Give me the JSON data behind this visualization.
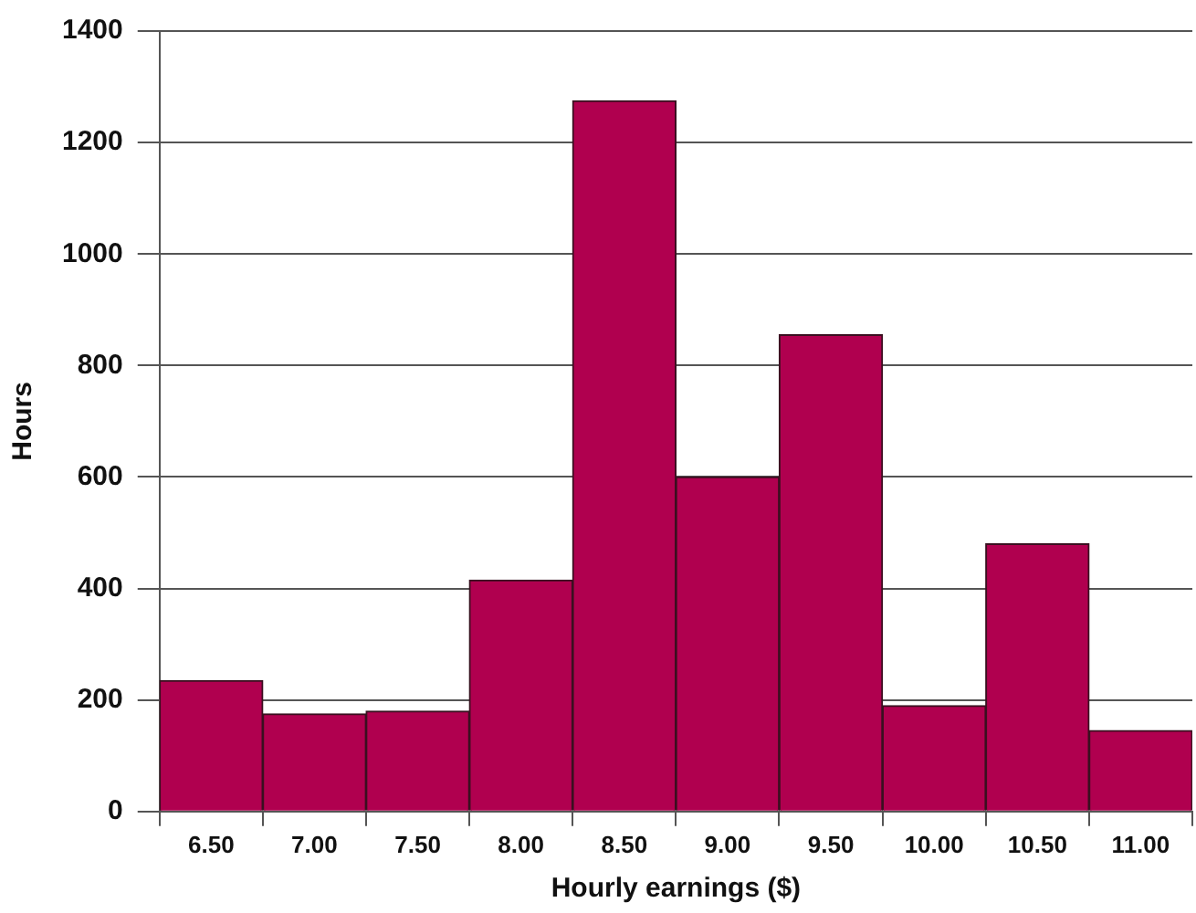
{
  "chart_data": {
    "type": "histogram",
    "xlabel": "Hourly earnings ($)",
    "ylabel": "Hours",
    "bins": [
      6.25,
      6.75,
      7.25,
      7.75,
      8.25,
      8.75,
      9.25,
      9.75,
      10.25,
      10.75,
      11.25
    ],
    "values": [
      235,
      175,
      180,
      415,
      1275,
      600,
      855,
      190,
      480,
      145
    ],
    "color": "#b0004f",
    "xlim": [
      6.25,
      11.25
    ],
    "xticks": [
      {
        "value": 6.5,
        "label": "6.50"
      },
      {
        "value": 7,
        "label": "7.00"
      },
      {
        "value": 7.5,
        "label": "7.50"
      },
      {
        "value": 8,
        "label": "8.00"
      },
      {
        "value": 8.5,
        "label": "8.50"
      },
      {
        "value": 9,
        "label": "9.00"
      },
      {
        "value": 9.5,
        "label": "9.50"
      },
      {
        "value": 10,
        "label": "10.00"
      },
      {
        "value": 10.5,
        "label": "10.50"
      },
      {
        "value": 11,
        "label": "11.00"
      }
    ],
    "ylim": [
      0,
      1400
    ],
    "yticks": [
      0,
      200,
      400,
      600,
      800,
      1000,
      1200,
      1400
    ],
    "grid": "y"
  }
}
